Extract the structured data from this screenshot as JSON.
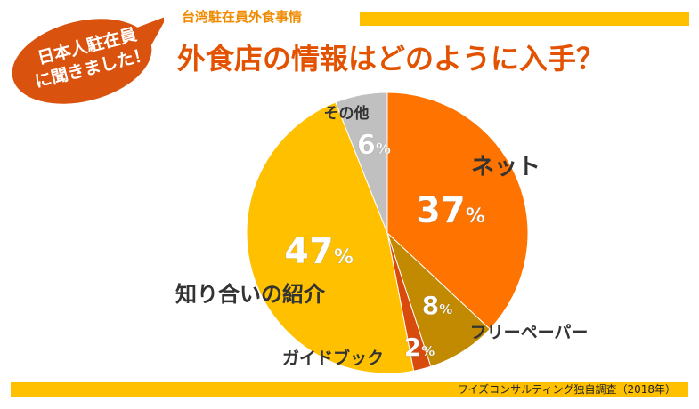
{
  "badge": {
    "line1": "日本人駐在員",
    "line2": "に聞きました！"
  },
  "header": {
    "subtitle": "台湾駐在員外食事情",
    "title": "外食店の情報はどのように入手？"
  },
  "footer": {
    "source": "ワイズコンサルティング独自調査（2018年）"
  },
  "colors": {
    "net": "#ff7300",
    "free_paper": "#c28a00",
    "guidebook": "#d94a0d",
    "word_of_mouth": "#ffc000",
    "other": "#c0c0c0",
    "badge": "#d9530f",
    "accent_bar": "#ffc000"
  },
  "chart_data": {
    "type": "pie",
    "start": "12 o'clock, clockwise",
    "slices": [
      {
        "label": "ネット",
        "value": 37,
        "value_label": "37%"
      },
      {
        "label": "フリーペーパー",
        "value": 8,
        "value_label": "8%"
      },
      {
        "label": "ガイドブック",
        "value": 2,
        "value_label": "2%"
      },
      {
        "label": "知り合いの紹介",
        "value": 47,
        "value_label": "47%"
      },
      {
        "label": "その他",
        "value": 6,
        "value_label": "6%"
      }
    ]
  }
}
